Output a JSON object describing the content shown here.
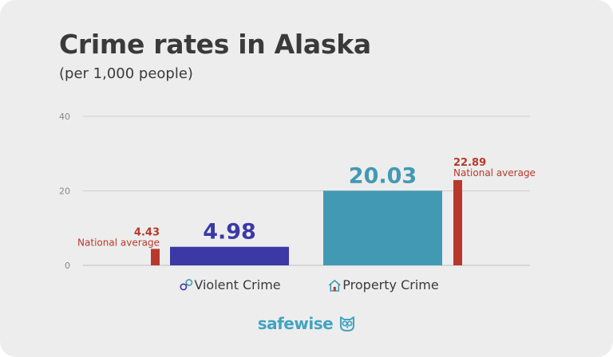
{
  "header": {
    "title": "Crime rates in Alaska",
    "subtitle": "(per 1,000 people)"
  },
  "brand": {
    "part1": "safe",
    "part2": "wise",
    "icon": "owl-icon"
  },
  "colors": {
    "violent": "#3b39a6",
    "property": "#4299b3",
    "national": "#b8392b",
    "grid": "#cfcfcf",
    "axis_text": "#888888",
    "text": "#3a3a3a"
  },
  "chart_data": {
    "type": "bar",
    "title": "Crime rates in Alaska",
    "subtitle": "(per 1,000 people)",
    "ylim": [
      0,
      40
    ],
    "yticks": [
      0,
      20,
      40
    ],
    "grid": true,
    "categories": [
      {
        "label": "Violent Crime",
        "icon": "handcuffs-icon",
        "value": 4.98,
        "value_label": "4.98",
        "national_average": 4.43,
        "national_label": "4.43",
        "national_text": "National average",
        "national_side": "left"
      },
      {
        "label": "Property Crime",
        "icon": "house-icon",
        "value": 20.03,
        "value_label": "20.03",
        "national_average": 22.89,
        "national_label": "22.89",
        "national_text": "National average",
        "national_side": "right"
      }
    ]
  }
}
